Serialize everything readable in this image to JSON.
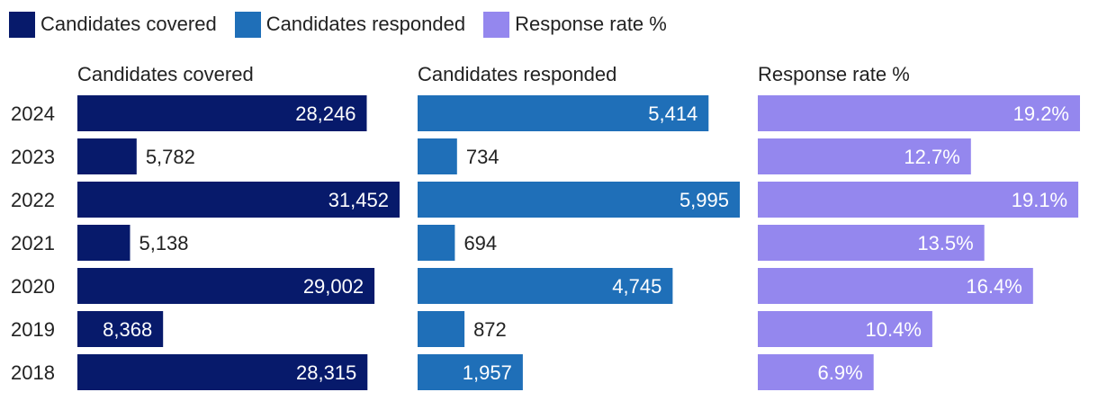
{
  "chart_data": {
    "type": "bar",
    "orientation": "horizontal",
    "layout": "small-multiples",
    "categories": [
      "2024",
      "2023",
      "2022",
      "2021",
      "2020",
      "2019",
      "2018"
    ],
    "legend_position": "top-left",
    "grid": false,
    "series": [
      {
        "name": "Candidates covered",
        "color": "#071a6b",
        "values": [
          28246,
          5782,
          31452,
          5138,
          29002,
          8368,
          28315
        ],
        "labels": [
          "28,246",
          "5,782",
          "31,452",
          "5,138",
          "29,002",
          "8,368",
          "28,315"
        ],
        "xlim": [
          0,
          31452
        ]
      },
      {
        "name": "Candidates responded",
        "color": "#1f6fb8",
        "values": [
          5414,
          734,
          5995,
          694,
          4745,
          872,
          1957
        ],
        "labels": [
          "5,414",
          "734",
          "5,995",
          "694",
          "4,745",
          "872",
          "1,957"
        ],
        "xlim": [
          0,
          5995
        ]
      },
      {
        "name": "Response rate %",
        "color": "#9487ee",
        "values": [
          19.2,
          12.7,
          19.1,
          13.5,
          16.4,
          10.4,
          6.9
        ],
        "labels": [
          "19.2%",
          "12.7%",
          "19.1%",
          "13.5%",
          "16.4%",
          "10.4%",
          "6.9%"
        ],
        "xlim": [
          0,
          19.2
        ]
      }
    ]
  }
}
